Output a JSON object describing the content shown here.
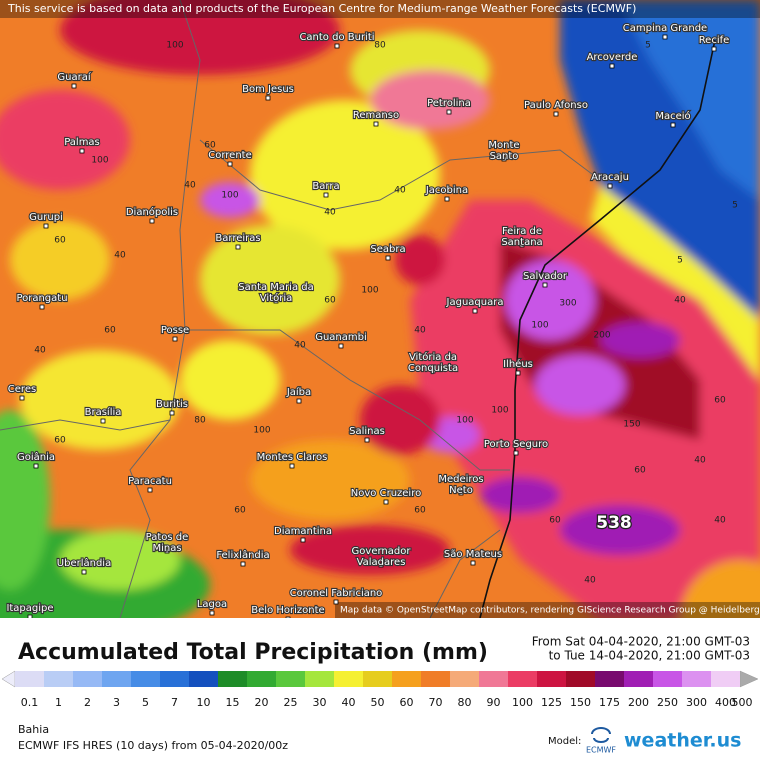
{
  "header": {
    "notice": "This service is based on data and products of the European Centre for Medium-range Weather Forecasts (ECMWF)"
  },
  "map": {
    "attribution": "Map data © OpenStreetMap contributors, rendering GIScience Research Group @ Heidelberg University",
    "max_label": "538",
    "cities": [
      "Canto do Buriti",
      "Campina Grande",
      "Recife",
      "Arcoverde",
      "Guaraí",
      "Bom Jesus",
      "Petrolina",
      "Paulo Afonso",
      "Maceió",
      "Remanso",
      "Palmas",
      "Monte Santo",
      "Corrente",
      "Aracaju",
      "Barra",
      "Jacobina",
      "Gurupi",
      "Dianópolis",
      "Feira de Santana",
      "Barreiras",
      "Seabra",
      "Salvador",
      "Santa Maria da Vitória",
      "Porangatu",
      "Jaguaquara",
      "Posse",
      "Guanambi",
      "Vitória da Conquista",
      "Ilhéus",
      "Ceres",
      "Brasília",
      "Buritis",
      "Jaíba",
      "Salinas",
      "Porto Seguro",
      "Goiânia",
      "Montes Claros",
      "Medeiros Neto",
      "Paracatu",
      "Novo Cruzeiro",
      "Diamantina",
      "Patos de Minas",
      "Governador Valadares",
      "São Mateus",
      "Uberlândia",
      "Felixlândia",
      "Coronel Fabriciano",
      "Lagoa",
      "Belo Horizonte",
      "Itapagipe"
    ],
    "contour_labels": [
      60,
      100,
      80,
      40,
      60,
      100,
      40,
      60,
      40,
      80,
      100,
      60,
      40,
      40,
      60,
      100,
      60,
      300,
      100,
      200,
      40,
      150,
      60,
      40,
      100,
      60,
      40,
      60,
      100,
      40,
      5,
      5,
      5,
      40,
      60,
      100,
      40
    ]
  },
  "legend": {
    "title": "Accumulated Total Precipitation (mm)",
    "period": [
      "From Sat 04-04-2020, 21:00 GMT-03",
      "to Tue 14-04-2020, 21:00 GMT-03"
    ],
    "scale": [
      0.1,
      1,
      2,
      3,
      5,
      7,
      10,
      15,
      20,
      25,
      30,
      40,
      50,
      60,
      70,
      80,
      90,
      100,
      125,
      150,
      175,
      200,
      250,
      300,
      400,
      500
    ],
    "colors": [
      "#dcdcf5",
      "#b9cdf5",
      "#96b9f5",
      "#6ea5f0",
      "#468ce6",
      "#2870d7",
      "#1450be",
      "#1e8c28",
      "#32aa32",
      "#5ac83c",
      "#a5e63c",
      "#f5f032",
      "#e6cd1e",
      "#f5a01e",
      "#f07d28",
      "#f5aa78",
      "#f07896",
      "#eb3c64",
      "#cd1441",
      "#a00a28",
      "#780a6e",
      "#a01eb4",
      "#c855e6",
      "#dc91f0",
      "#f0cdf5"
    ]
  },
  "footer": {
    "region": "Bahia",
    "run": "ECMWF IFS HRES (10 days) from 05-04-2020/00z",
    "model_label": "Model:",
    "model_logo": "ECMWF",
    "brand": "weather.us"
  }
}
